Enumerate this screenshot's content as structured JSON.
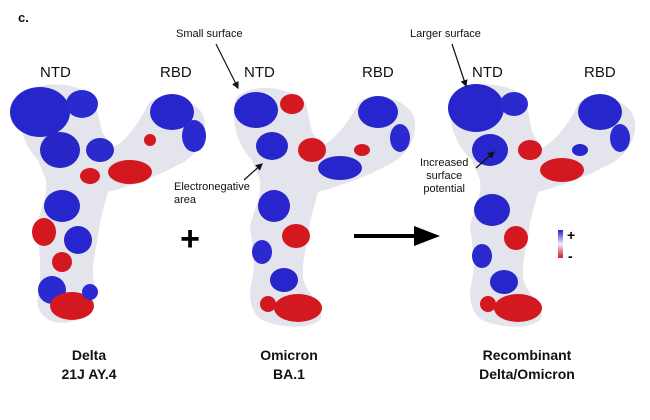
{
  "figure": {
    "panel_label": "c.",
    "domain_labels": {
      "ntd": "NTD",
      "rbd": "RBD"
    },
    "annotations": {
      "small_surface": "Small surface",
      "larger_surface": "Larger surface",
      "electronegative_l1": "Electronegative",
      "electronegative_l2": "area",
      "increased_l1": "Increased",
      "increased_l2": "surface",
      "increased_l3": "potential"
    },
    "operators": {
      "plus": "+"
    },
    "legend": {
      "positive": "+",
      "negative": "-"
    },
    "captions": [
      {
        "line1": "Delta",
        "line2": "21J AY.4"
      },
      {
        "line1": "Omicron",
        "line2": "BA.1"
      },
      {
        "line1": "Recombinant",
        "line2": "Delta/Omicron"
      }
    ],
    "colors": {
      "positive": "#2222cc",
      "neutral": "#e6e6ee",
      "negative": "#d8161e"
    }
  }
}
